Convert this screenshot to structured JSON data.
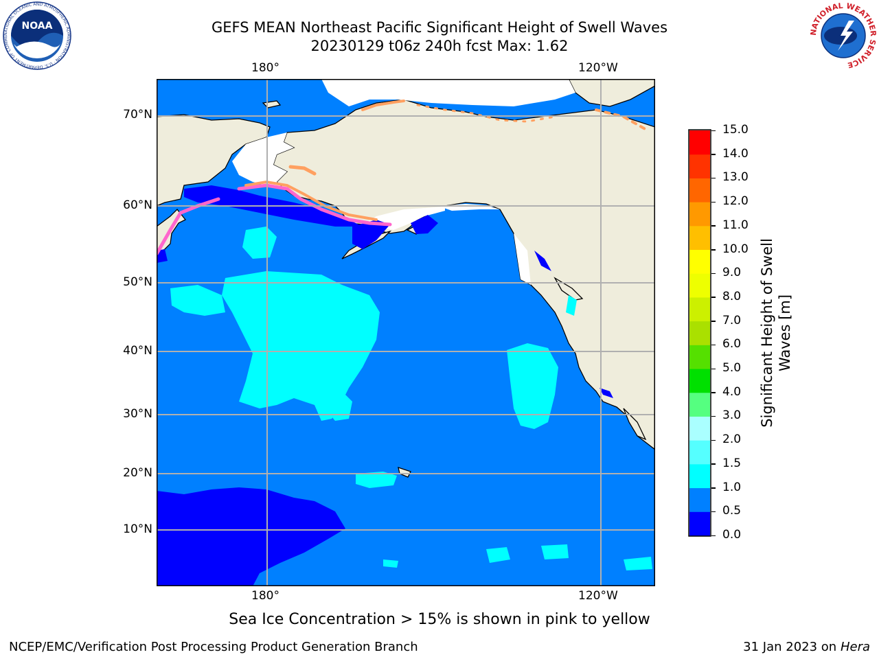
{
  "title": {
    "line1": "GEFS MEAN Northeast Pacific Significant Height of Swell Waves",
    "line2": "20230129 t06z 240h fcst   Max: 1.62"
  },
  "map": {
    "lon_labels_top": [
      "180°",
      "120°W"
    ],
    "lon_labels_bottom": [
      "180°",
      "120°W"
    ],
    "lat_labels": [
      "70°N",
      "60°N",
      "50°N",
      "40°N",
      "30°N",
      "20°N",
      "10°N"
    ],
    "colors": {
      "land": "#EFEDDC",
      "ocean_main": "#0080FF",
      "ocean_low": "#0000FF",
      "ocean_mid": "#00FFFF",
      "ice_pink": "#FF66CC",
      "ice_orange": "#FFA060",
      "grid": "#B0B0B0"
    }
  },
  "colorbar": {
    "title_line1": "Significant Height of Swell",
    "title_line2": "Waves [m]",
    "ticks": [
      "15.0",
      "14.0",
      "13.0",
      "12.0",
      "11.0",
      "10.0",
      "9.0",
      "8.0",
      "7.0",
      "6.0",
      "5.0",
      "4.0",
      "3.0",
      "2.0",
      "1.5",
      "1.0",
      "0.5",
      "0.0"
    ],
    "colors": [
      "#0000FF",
      "#0080FF",
      "#00FFFF",
      "#55FFFF",
      "#AAFFFF",
      "#55FF80",
      "#00E000",
      "#55E000",
      "#AAE000",
      "#CCF000",
      "#EEFF00",
      "#FFFF00",
      "#FFBF00",
      "#FF9900",
      "#FF6600",
      "#FF3300",
      "#FF0000"
    ]
  },
  "logos": {
    "noaa_text": "NOAA",
    "noaa_ring": "NATIONAL OCEANIC AND ATMOSPHERIC ADMINISTRATION · U.S. DEPARTMENT OF COMMERCE",
    "nws_ring": "NATIONAL WEATHER SERVICE"
  },
  "ice_note": "Sea Ice Concentration > 15% is shown in pink to yellow",
  "footer": {
    "left": "NCEP/EMC/Verification Post Processing Product Generation Branch",
    "right_date": "31 Jan 2023 on ",
    "right_machine": "Hera"
  }
}
